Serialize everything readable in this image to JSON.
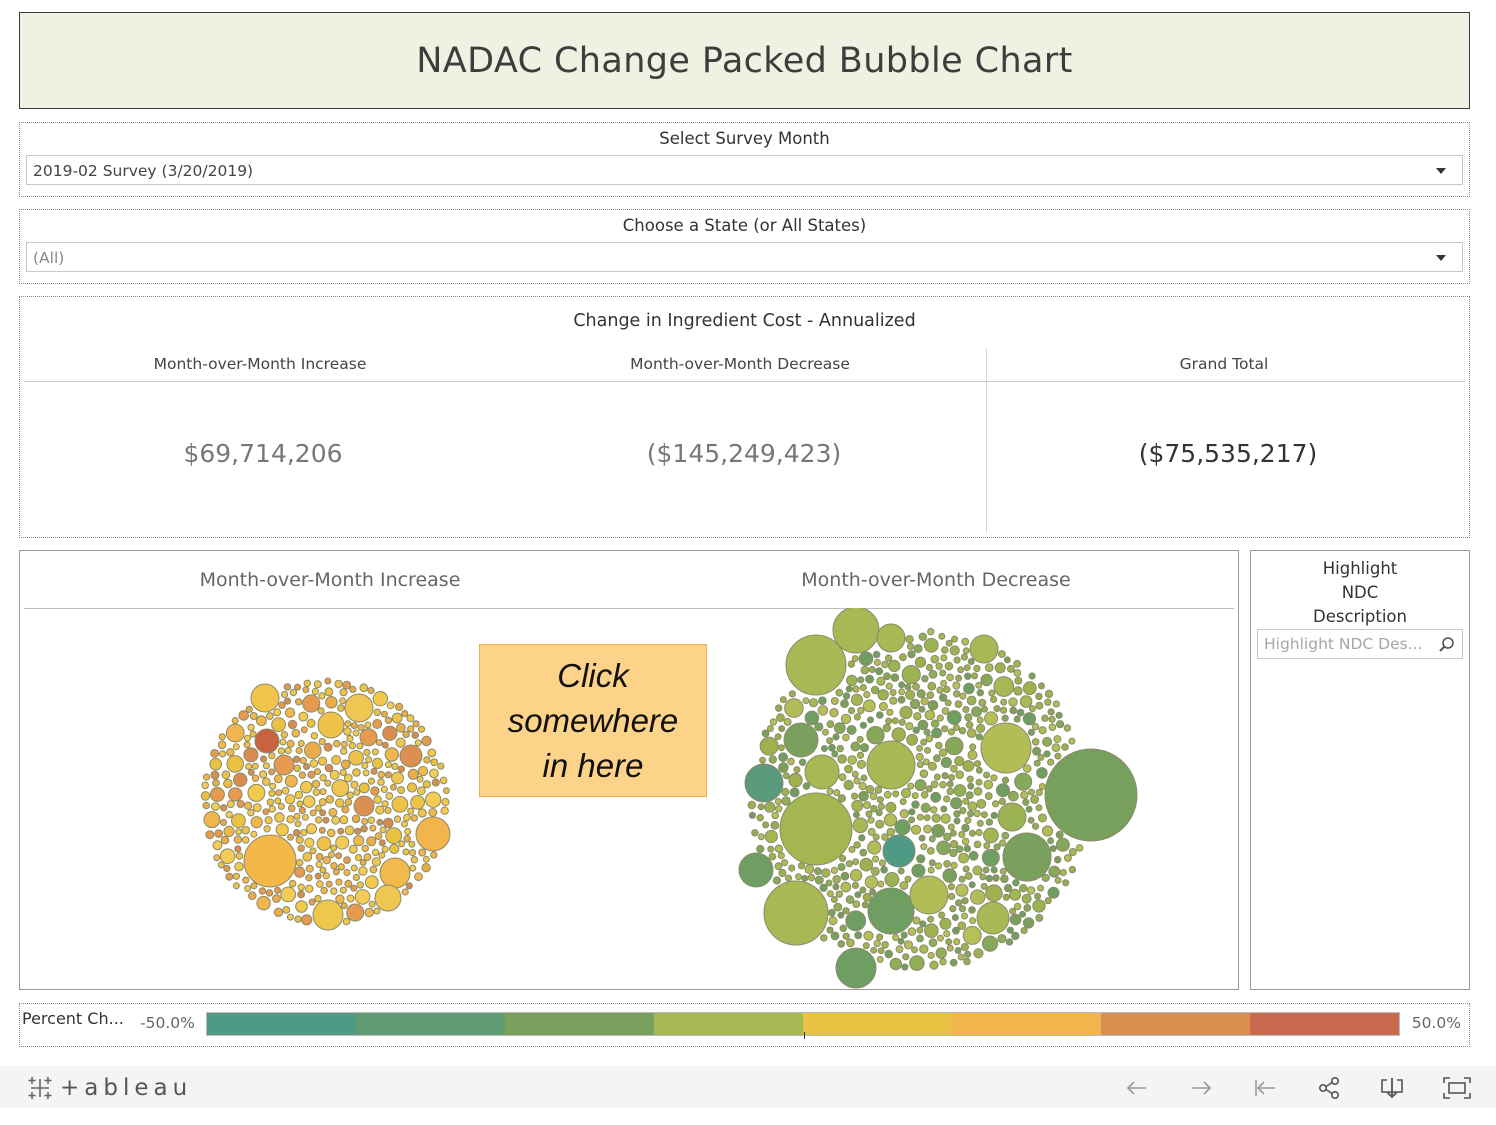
{
  "header": {
    "title": "NADAC Change Packed Bubble Chart"
  },
  "filters": {
    "survey_month": {
      "label": "Select Survey Month",
      "value": "2019-02 Survey (3/20/2019)"
    },
    "state": {
      "label": "Choose a State (or All States)",
      "value": "(All)"
    }
  },
  "kpi": {
    "title": "Change in Ingredient Cost - Annualized",
    "increase": {
      "label": "Month-over-Month Increase",
      "value": "$69,714,206"
    },
    "decrease": {
      "label": "Month-over-Month Decrease",
      "value": "($145,249,423)"
    },
    "total": {
      "label": "Grand Total",
      "value": "($75,535,217)"
    }
  },
  "chart": {
    "increase_label": "Month-over-Month Increase",
    "decrease_label": "Month-over-Month Decrease",
    "callout": [
      "Click",
      "somewhere",
      "in here"
    ]
  },
  "highlight": {
    "label_lines": [
      "Highlight",
      "NDC",
      "Description"
    ],
    "placeholder": "Highlight NDC Des..."
  },
  "legend": {
    "label": "Percent Ch...",
    "min": "-50.0%",
    "max": "50.0%",
    "colors": [
      "#4e9a85",
      "#629b73",
      "#7aa05d",
      "#a8b854",
      "#e9c244",
      "#f2b54d",
      "#db8f51",
      "#c96a4f"
    ]
  },
  "footer": {
    "logo": "+ableau",
    "icons": [
      "undo-icon",
      "redo-icon",
      "revert-icon",
      "share-icon",
      "download-icon",
      "fullscreen-icon"
    ]
  },
  "chart_data": [
    {
      "type": "bubble",
      "series": [
        {
          "name": "Month-over-Month Increase",
          "color_range": [
            "#e9c244",
            "#c96a4f"
          ]
        }
      ]
    },
    {
      "type": "bubble",
      "series": [
        {
          "name": "Month-over-Month Decrease",
          "color_range": [
            "#a8b854",
            "#4e9a85"
          ]
        }
      ]
    }
  ]
}
